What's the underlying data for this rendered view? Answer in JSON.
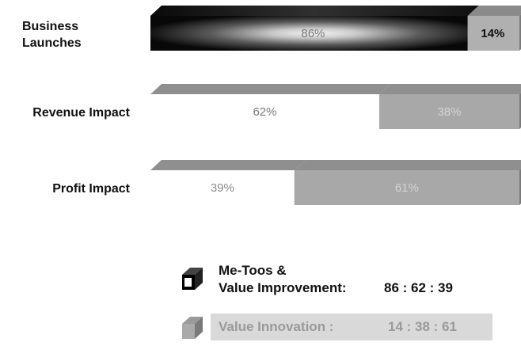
{
  "chart_data": {
    "type": "bar",
    "stacked": true,
    "percent": true,
    "categories": [
      "Business Launches",
      "Revenue Impact",
      "Profit Impact"
    ],
    "category_lines": [
      [
        "Business",
        "Launches"
      ],
      [
        "Revenue Impact"
      ],
      [
        "Profit Impact"
      ]
    ],
    "series": [
      {
        "name": "Me-Toos & Value Improvement",
        "values": [
          86,
          62,
          39
        ],
        "labels": [
          "86%",
          "62%",
          "39%"
        ]
      },
      {
        "name": "Value Innovation",
        "values": [
          14,
          38,
          61
        ],
        "labels": [
          "14%",
          "38%",
          "61%"
        ]
      }
    ],
    "colors": {
      "dark": "#1a1a1a",
      "dark_highlight": "#f0f0f0",
      "gray_bar": "#a8a8a8",
      "gray_top": "#8f8f8f",
      "gray_side": "#7a7a7a"
    }
  },
  "legend": {
    "metoos_line1": "Me-Toos &",
    "metoos_line2": "Value Improvement:",
    "metoos_values": "86 :  62 :  39",
    "innovation_label": "Value Innovation :",
    "innovation_values": "14 :  38 :  61"
  }
}
